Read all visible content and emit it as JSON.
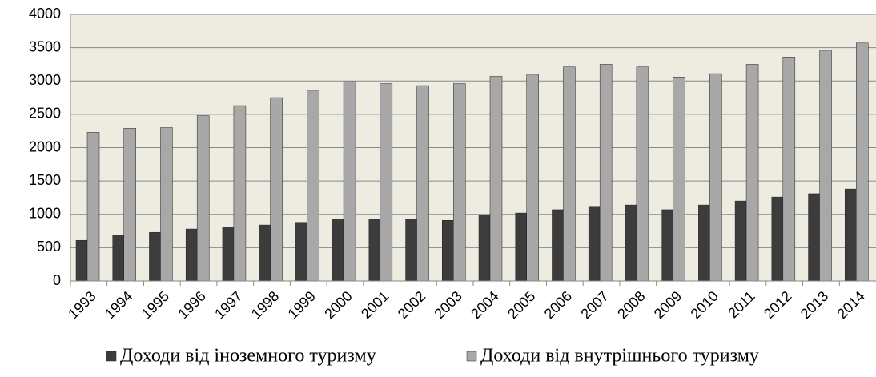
{
  "chart_data": {
    "type": "bar",
    "categories": [
      "1993",
      "1994",
      "1995",
      "1996",
      "1997",
      "1998",
      "1999",
      "2000",
      "2001",
      "2002",
      "2003",
      "2004",
      "2005",
      "2006",
      "2007",
      "2008",
      "2009",
      "2010",
      "2011",
      "2012",
      "2013",
      "2014"
    ],
    "series": [
      {
        "name": "Доходи від іноземного туризму",
        "color": "#3c3c3c",
        "values": [
          610,
          690,
          730,
          780,
          810,
          840,
          880,
          930,
          930,
          930,
          910,
          990,
          1020,
          1070,
          1120,
          1140,
          1070,
          1140,
          1200,
          1260,
          1310,
          1380
        ]
      },
      {
        "name": "Доходи від внутрішнього туризму",
        "color": "#a8a8a8",
        "values": [
          2230,
          2290,
          2300,
          2480,
          2630,
          2750,
          2860,
          2990,
          2960,
          2930,
          2960,
          3070,
          3100,
          3210,
          3250,
          3210,
          3060,
          3110,
          3250,
          3360,
          3460,
          3570
        ]
      }
    ],
    "ylim": [
      0,
      4000
    ],
    "yticks": [
      0,
      500,
      1000,
      1500,
      2000,
      2500,
      3000,
      3500,
      4000
    ],
    "grid": true
  }
}
